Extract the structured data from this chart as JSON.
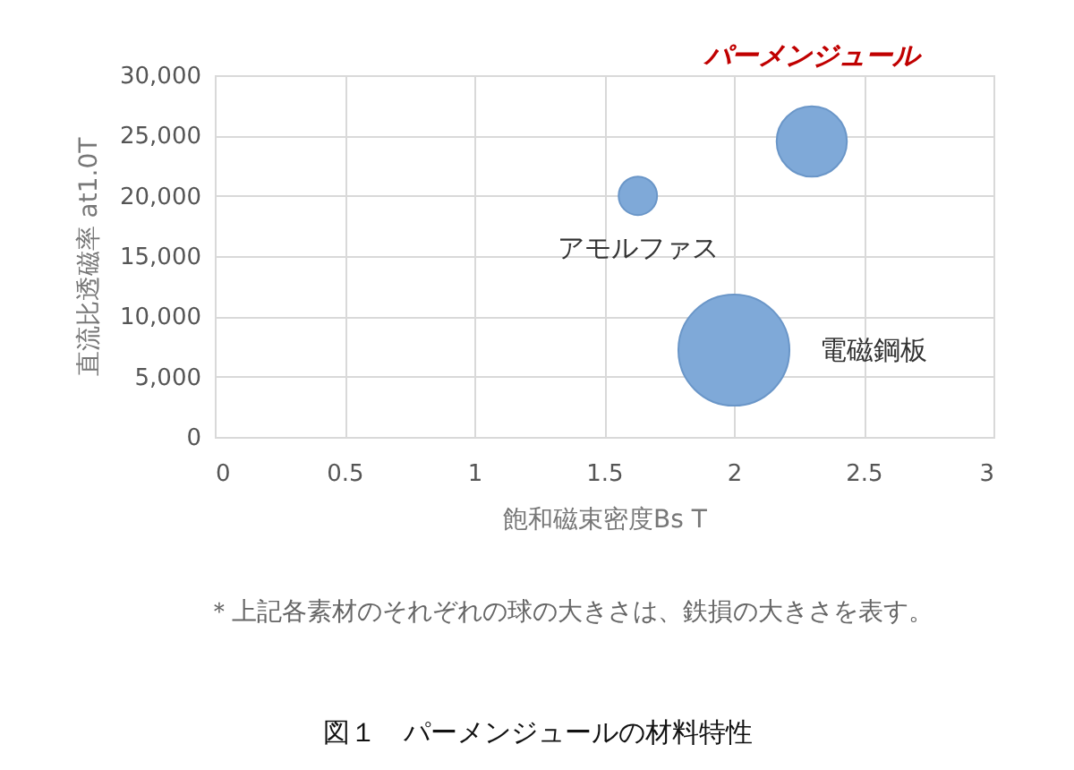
{
  "chart_data": {
    "type": "bubble",
    "title": "図１　パーメンジュールの材料特性",
    "xlabel": "飽和磁束密度Bs T",
    "ylabel": "直流比透磁率 at1.0T",
    "xlim": [
      0,
      3
    ],
    "xticks": [
      0,
      0.5,
      1,
      1.5,
      2,
      2.5,
      3
    ],
    "ylim": [
      0,
      30000
    ],
    "yticks": [
      0,
      {
        "value": 5000,
        "label": "5,000"
      },
      {
        "value": 10000,
        "label": "10,000"
      },
      {
        "value": 15000,
        "label": "15,000"
      },
      {
        "value": 20000,
        "label": "20,000"
      },
      {
        "value": 25000,
        "label": "25,000"
      },
      {
        "value": 30000,
        "label": "30,000"
      }
    ],
    "grid": true,
    "legend": false,
    "series": [
      {
        "name": "パーメンジュール",
        "color": "#7fa9d8",
        "x": [
          2.3
        ],
        "values": [
          24500
        ],
        "sizes": [
          0.4
        ]
      },
      {
        "name": "アモルファス",
        "color": "#7fa9d8",
        "x": [
          1.63
        ],
        "values": [
          20000
        ],
        "sizes": [
          0.12
        ]
      },
      {
        "name": "電磁鋼板",
        "color": "#7fa9d8",
        "x": [
          2.0
        ],
        "values": [
          7200
        ],
        "sizes": [
          1
        ]
      }
    ],
    "annotations": [
      "＊上記各素材のそれぞれの球の大きさは、鉄損の大きさを表す。"
    ]
  }
}
